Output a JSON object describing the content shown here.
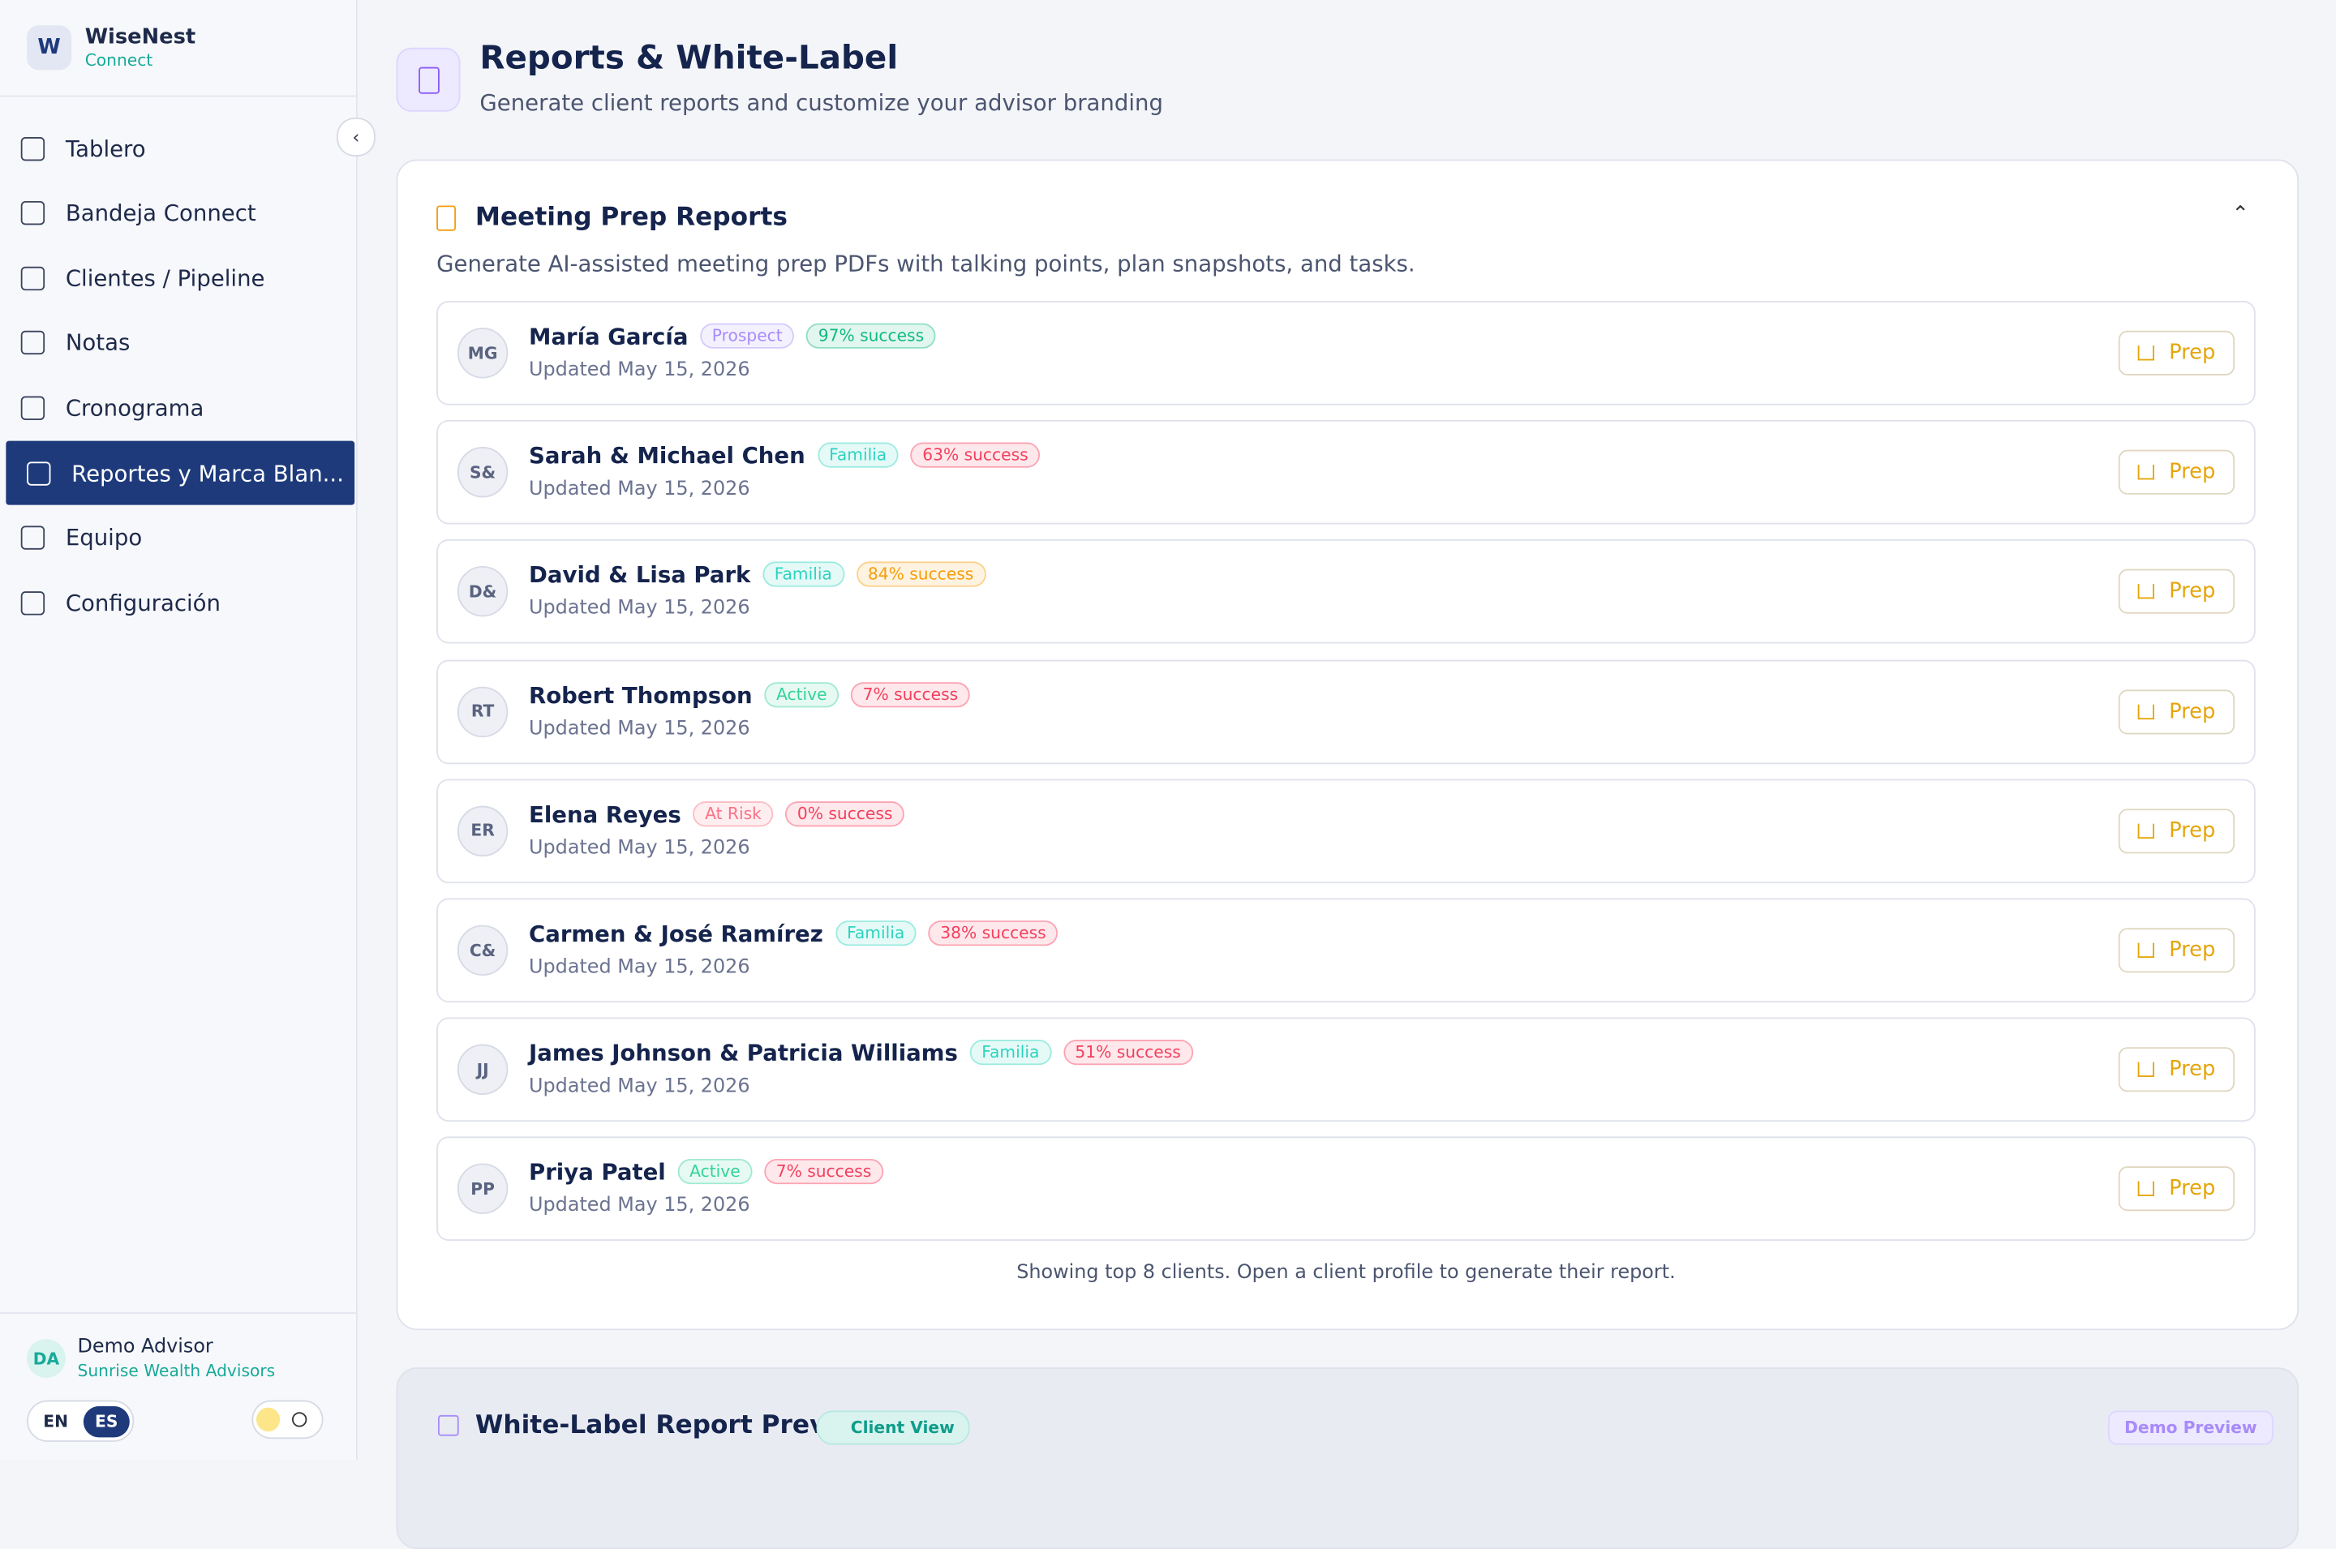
{
  "sidebar": {
    "logo": "W",
    "brand": "WiseNest",
    "brand_sub": "Connect",
    "nav": [
      "Tablero",
      "Bandeja Connect",
      "Clientes / Pipeline",
      "Notas",
      "Cronograma",
      "Reportes y Marca Blan...",
      "Equipo",
      "Configuración"
    ],
    "user": {
      "initials": "DA",
      "name": "Demo Advisor",
      "org": "Sunrise Wealth Advisors"
    },
    "lang": [
      "EN",
      "ES"
    ]
  },
  "header": {
    "title": "Reports & White-Label",
    "subtitle": "Generate client reports and customize your advisor branding"
  },
  "reports": {
    "title": "Meeting Prep Reports",
    "description": "Generate AI-assisted meeting prep PDFs with talking points, plan snapshots, and tasks.",
    "button": "Prep",
    "rows": [
      {
        "initials": "MG",
        "name": "María García",
        "status": "Prospect",
        "status_color": "#a78bfa",
        "success": "97% success",
        "success_color": "#10b981",
        "updated": "Updated May 15, 2026"
      },
      {
        "initials": "S&",
        "name": "Sarah & Michael Chen",
        "status": "Familia",
        "status_color": "#2dd4bf",
        "success": "63% success",
        "success_color": "#f43f5e",
        "updated": "Updated May 15, 2026"
      },
      {
        "initials": "D&",
        "name": "David & Lisa Park",
        "status": "Familia",
        "status_color": "#2dd4bf",
        "success": "84% success",
        "success_color": "#f59e0b",
        "updated": "Updated May 15, 2026"
      },
      {
        "initials": "RT",
        "name": "Robert Thompson",
        "status": "Active",
        "status_color": "#34d399",
        "success": "7% success",
        "success_color": "#f43f5e",
        "updated": "Updated May 15, 2026"
      },
      {
        "initials": "ER",
        "name": "Elena Reyes",
        "status": "At Risk",
        "status_color": "#fb7185",
        "success": "0% success",
        "success_color": "#f43f5e",
        "updated": "Updated May 15, 2026"
      },
      {
        "initials": "C&",
        "name": "Carmen & José Ramírez",
        "status": "Familia",
        "status_color": "#2dd4bf",
        "success": "38% success",
        "success_color": "#f43f5e",
        "updated": "Updated May 15, 2026"
      },
      {
        "initials": "JJ",
        "name": "James Johnson & Patricia Williams",
        "status": "Familia",
        "status_color": "#2dd4bf",
        "success": "51% success",
        "success_color": "#f43f5e",
        "updated": "Updated May 15, 2026"
      },
      {
        "initials": "PP",
        "name": "Priya Patel",
        "status": "Active",
        "status_color": "#34d399",
        "success": "7% success",
        "success_color": "#f43f5e",
        "updated": "Updated May 15, 2026"
      }
    ],
    "footer": "Showing top 8 clients. Open a client profile to generate their report."
  },
  "preview": {
    "title": "White-Label Report Preview",
    "tag": "Client View",
    "badge": "Demo Preview"
  }
}
